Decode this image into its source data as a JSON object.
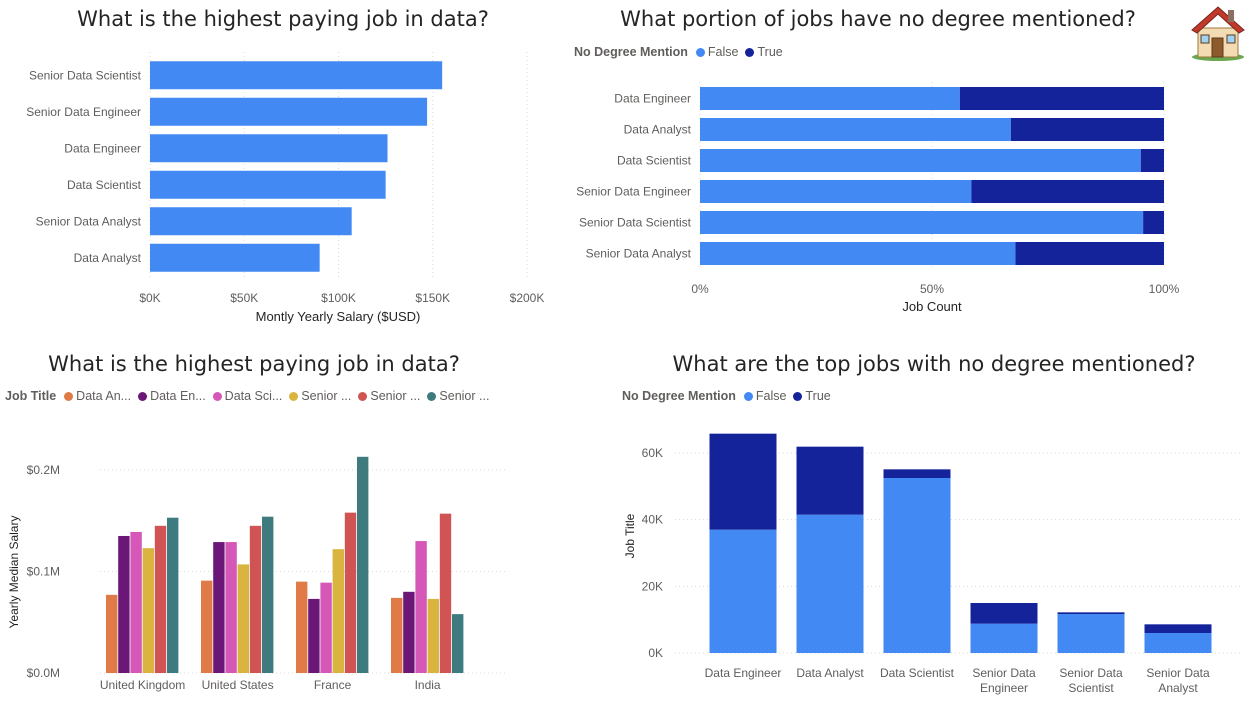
{
  "colors": {
    "false": "#4289f4",
    "true": "#15239a",
    "jobs": [
      "#e07a47",
      "#6b1778",
      "#d558b8",
      "#d9b53f",
      "#d15454",
      "#3e7b7f"
    ],
    "grid": "#d9d9d9",
    "axis_text": "#605e5c"
  },
  "home": {
    "icon": "house-icon"
  },
  "panels": {
    "tl": {
      "title": "What is the highest paying job in data?"
    },
    "tr": {
      "title": "What portion of jobs have no degree mentioned?"
    },
    "bl": {
      "title": "What is the highest paying job in data?"
    },
    "br": {
      "title": "What are the top jobs with no degree mentioned?"
    }
  },
  "chart_data": [
    {
      "id": "salary_by_job",
      "type": "bar",
      "orientation": "horizontal",
      "title": "What is the highest paying job in data?",
      "categories": [
        "Senior Data Scientist",
        "Senior Data Engineer",
        "Data Engineer",
        "Data Scientist",
        "Senior Data Analyst",
        "Data Analyst"
      ],
      "values": [
        155000,
        147000,
        126000,
        125000,
        107000,
        90000
      ],
      "xlabel": "Montly Yearly Salary ($USD)",
      "xlim": [
        0,
        200000
      ],
      "xticks": [
        0,
        50000,
        100000,
        150000,
        200000
      ],
      "xtick_labels": [
        "$0K",
        "$50K",
        "$100K",
        "$150K",
        "$200K"
      ],
      "grid": "vertical dotted"
    },
    {
      "id": "no_degree_share",
      "type": "bar",
      "orientation": "horizontal",
      "stacked": "100%",
      "title": "What portion of jobs have no degree mentioned?",
      "legend_title": "No Degree Mention",
      "categories": [
        "Data Engineer",
        "Data Analyst",
        "Data Scientist",
        "Senior Data Engineer",
        "Senior Data Scientist",
        "Senior Data Analyst"
      ],
      "series": [
        {
          "name": "False",
          "values": [
            56,
            67,
            95,
            58.5,
            95.5,
            68
          ]
        },
        {
          "name": "True",
          "values": [
            44,
            33,
            5,
            41.5,
            4.5,
            32
          ]
        }
      ],
      "xlabel": "Job Count",
      "xlim": [
        0,
        100
      ],
      "xticks": [
        0,
        50,
        100
      ],
      "xtick_labels": [
        "0%",
        "50%",
        "100%"
      ],
      "legend_position": "top-left"
    },
    {
      "id": "salary_by_country",
      "type": "bar",
      "orientation": "vertical",
      "grouped": true,
      "title": "What is the highest paying job in data?",
      "legend_title": "Job Title",
      "legend_labels": [
        "Data An...",
        "Data En...",
        "Data Sci...",
        "Senior ...",
        "Senior ...",
        "Senior ..."
      ],
      "categories": [
        "United Kingdom",
        "United States",
        "France",
        "India"
      ],
      "series": [
        {
          "values": [
            77000,
            91000,
            90000,
            74000
          ]
        },
        {
          "values": [
            135000,
            129000,
            73000,
            80000
          ]
        },
        {
          "values": [
            139000,
            129000,
            89000,
            130000
          ]
        },
        {
          "values": [
            123000,
            107000,
            122000,
            73000
          ]
        },
        {
          "values": [
            145000,
            145000,
            158000,
            157000
          ]
        },
        {
          "values": [
            153000,
            154000,
            213000,
            58000
          ]
        }
      ],
      "ylabel": "Yearly Median Salary",
      "ylim": [
        0,
        200000
      ],
      "yticks": [
        0,
        100000,
        200000
      ],
      "ytick_labels": [
        "$0.0M",
        "$0.1M",
        "$0.2M"
      ],
      "legend_position": "top-left"
    },
    {
      "id": "no_degree_counts",
      "type": "bar",
      "orientation": "vertical",
      "stacked": true,
      "title": "What are the top jobs with no degree mentioned?",
      "legend_title": "No Degree Mention",
      "categories": [
        [
          "Data Engineer"
        ],
        [
          "Data Analyst"
        ],
        [
          "Data Scientist"
        ],
        [
          "Senior Data",
          "Engineer"
        ],
        [
          "Senior Data",
          "Scientist"
        ],
        [
          "Senior Data",
          "Analyst"
        ]
      ],
      "series": [
        {
          "name": "False",
          "values": [
            37000,
            41500,
            52500,
            8800,
            11700,
            6000
          ]
        },
        {
          "name": "True",
          "values": [
            28800,
            20400,
            2600,
            6200,
            500,
            2600
          ]
        }
      ],
      "ylabel": "Job Title",
      "ylim": [
        0,
        60000
      ],
      "yticks": [
        0,
        20000,
        40000,
        60000
      ],
      "ytick_labels": [
        "0K",
        "20K",
        "40K",
        "60K"
      ],
      "legend_position": "top-left"
    }
  ]
}
